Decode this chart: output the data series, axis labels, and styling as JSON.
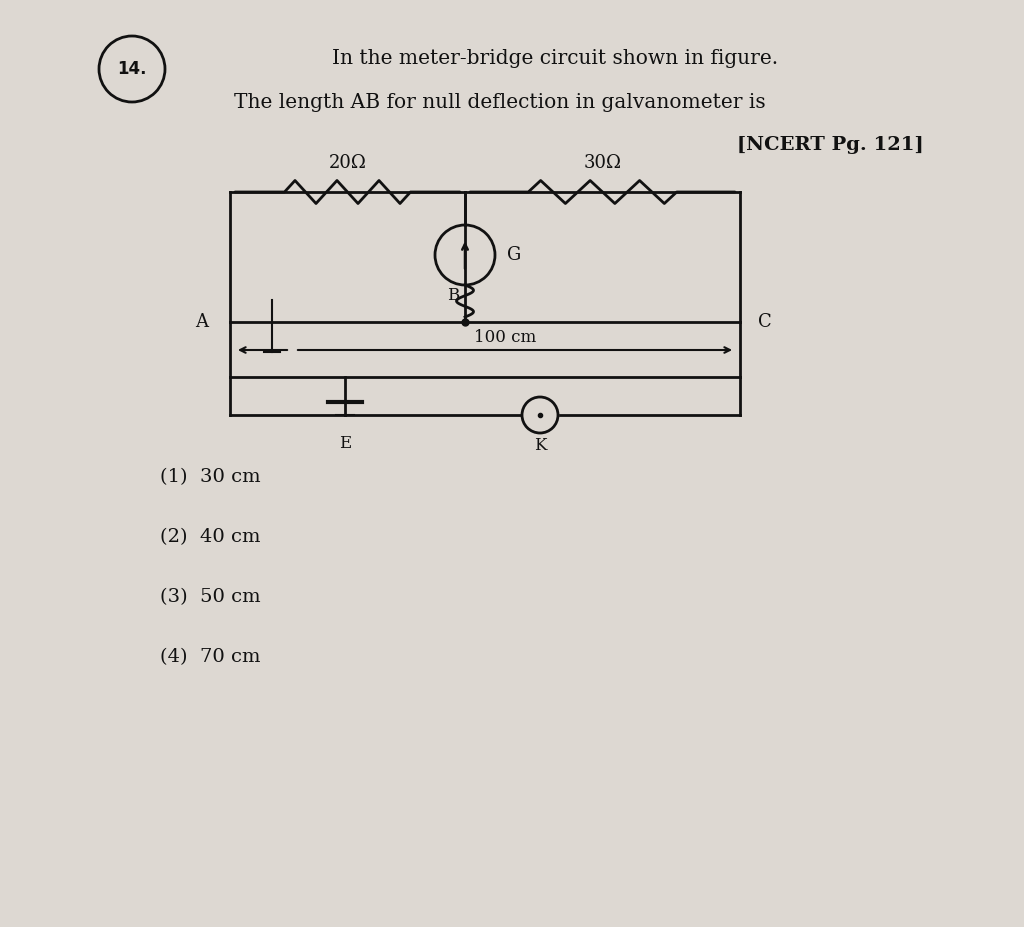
{
  "bg_color": "#ddd8d2",
  "title_line1": "In the meter-bridge circuit shown in figure.",
  "title_line2": "The length AB for null deflection in galvanometer is",
  "reference": "[NCERT Pg. 121]",
  "question_num": "14.",
  "options": [
    "(1)  30 cm",
    "(2)  40 cm",
    "(3)  50 cm",
    "(4)  70 cm"
  ],
  "res_left": "20Ω",
  "res_right": "30Ω",
  "galv_label": "G",
  "lbl_A": "A",
  "lbl_B": "B",
  "lbl_C": "C",
  "lbl_E": "E",
  "lbl_K": "K",
  "wire_label": "100 cm",
  "text_color": "#111111",
  "circuit_color": "#111111"
}
